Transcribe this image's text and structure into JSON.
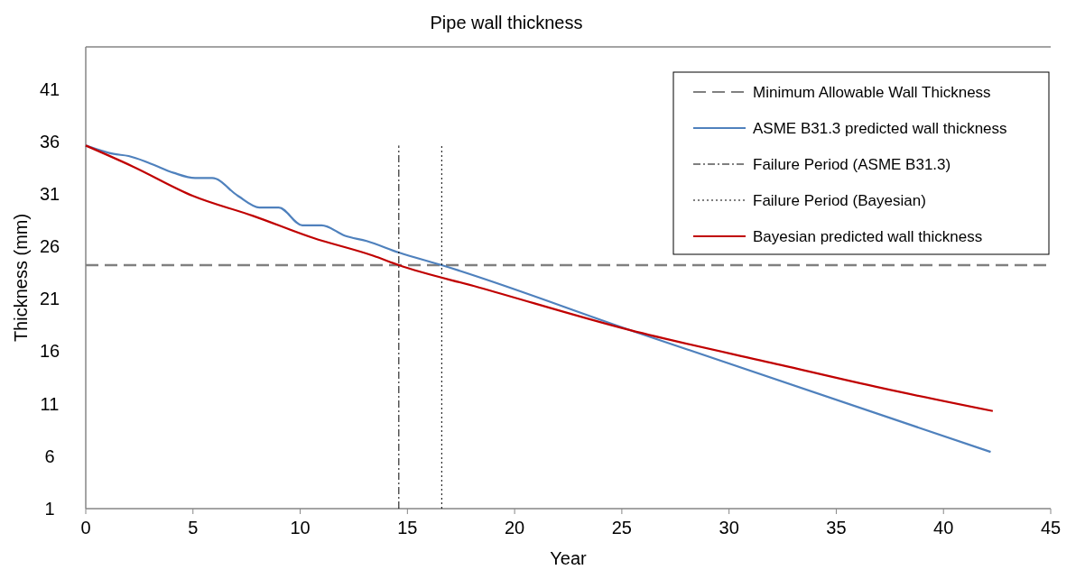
{
  "chart_data": {
    "type": "line",
    "title": "Pipe wall thickness",
    "xlabel": "Year",
    "ylabel": "Thickness (mm)",
    "xlim": [
      0,
      45
    ],
    "xticks": [
      0,
      5,
      10,
      15,
      20,
      25,
      30,
      35,
      40,
      45
    ],
    "ylim": [
      1,
      45
    ],
    "yticks": [
      1,
      6,
      11,
      16,
      21,
      26,
      31,
      36,
      41
    ],
    "grid": false,
    "legend": "top right",
    "series": [
      {
        "name": "Minimum Allowable Wall Thickness",
        "color": "#808080",
        "line_style": "dashed",
        "x": [
          0,
          45
        ],
        "values": [
          24.2,
          24.2
        ]
      },
      {
        "name": "ASME B31.3 predicted wall thickness",
        "color": "#4f81bd",
        "line_style": "solid",
        "x": [
          0,
          1.3,
          2,
          3,
          4.1,
          5.1,
          5.9,
          7.1,
          8.1,
          9,
          10.1,
          11,
          12.1,
          13.1,
          14.6,
          16.6,
          25.4,
          42.2
        ],
        "values": [
          35.6,
          34.8,
          34.6,
          33.9,
          33,
          32.5,
          32.5,
          30.8,
          29.7,
          29.7,
          28,
          28,
          27,
          26.5,
          25.4,
          24.2,
          18,
          6.4
        ]
      },
      {
        "name": "Failure Period (ASME B31.3)",
        "color": "#000000",
        "line_style": "dashdot",
        "x": [
          14.6,
          14.6
        ],
        "values": [
          1,
          35.6
        ]
      },
      {
        "name": "Failure Period (Bayesian)",
        "color": "#000000",
        "line_style": "dotted",
        "x": [
          16.6,
          16.6
        ],
        "values": [
          1,
          35.6
        ]
      },
      {
        "name": "Bayesian predicted wall thickness",
        "color": "#c00000",
        "line_style": "solid",
        "x": [
          0,
          2.2,
          5,
          7.8,
          10.6,
          13.4,
          14.6,
          18.3,
          25.4,
          32.4,
          37.1,
          42.3
        ],
        "values": [
          35.6,
          33.6,
          30.8,
          28.9,
          26.8,
          25.1,
          24.2,
          22.1,
          18,
          14.7,
          12.5,
          10.3
        ]
      }
    ]
  }
}
